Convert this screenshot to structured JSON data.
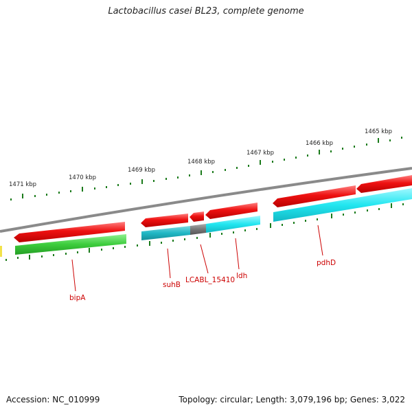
{
  "title": "Lactobacillus casei BL23, complete genome",
  "footer": {
    "accession": "Accession: NC_010999",
    "topology": "Topology: circular; Length: 3,079,196 bp; Genes: 3,022"
  },
  "kbp_labels": [
    "1471 kbp",
    "1470 kbp",
    "1469 kbp",
    "1468 kbp",
    "1467 kbp",
    "1466 kbp",
    "1465 kbp"
  ],
  "genes": [
    "bipA",
    "suhB",
    "LCABL_15410",
    "ldh",
    "pdhD"
  ],
  "colors": {
    "forward": "#ee1111",
    "reverse_cyan": "#22e6f0",
    "reverse_teal": "#1fb7c4",
    "reverse_green": "#3ccc3c",
    "reverse_gray": "#777777",
    "backbone": "#8a8a8a",
    "tick": "#1a7a1a",
    "label": "#cc0000"
  }
}
